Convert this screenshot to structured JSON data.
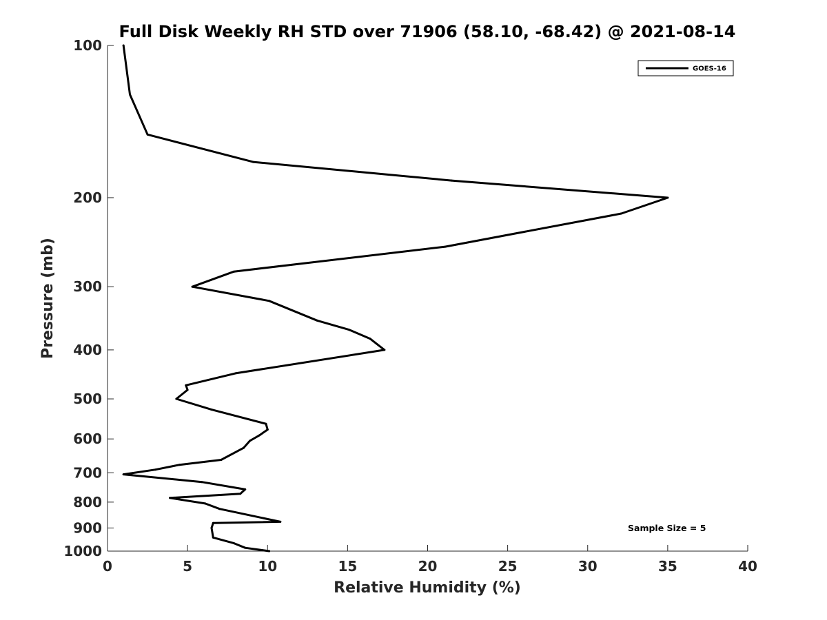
{
  "chart_data": {
    "type": "line",
    "title": "Full Disk Weekly RH STD over 71906 (58.10, -68.42) @ 2021-08-14",
    "xlabel": "Relative Humidity (%)",
    "ylabel": "Pressure (mb)",
    "xlim": [
      0,
      40
    ],
    "ylim": [
      100,
      1000
    ],
    "y_scale": "log",
    "y_direction": "reversed",
    "xticks": [
      0,
      5,
      10,
      15,
      20,
      25,
      30,
      35,
      40
    ],
    "yticks": [
      100,
      200,
      300,
      400,
      500,
      600,
      700,
      800,
      900,
      1000
    ],
    "grid": false,
    "legend_position": "top-right",
    "annotation": "Sample Size = 5",
    "series": [
      {
        "name": "GOES-16",
        "color": "#000000",
        "points": [
          [
            1.0,
            100
          ],
          [
            1.4,
            125
          ],
          [
            2.5,
            150
          ],
          [
            9.1,
            170
          ],
          [
            21.5,
            185
          ],
          [
            35.0,
            200
          ],
          [
            32.1,
            215
          ],
          [
            21.1,
            250
          ],
          [
            7.9,
            280
          ],
          [
            5.3,
            300
          ],
          [
            10.1,
            320
          ],
          [
            13.1,
            350
          ],
          [
            15.1,
            365
          ],
          [
            16.4,
            380
          ],
          [
            17.3,
            400
          ],
          [
            8.0,
            445
          ],
          [
            4.9,
            470
          ],
          [
            5.0,
            480
          ],
          [
            4.3,
            500
          ],
          [
            6.5,
            525
          ],
          [
            9.9,
            560
          ],
          [
            10.0,
            575
          ],
          [
            9.5,
            590
          ],
          [
            8.9,
            605
          ],
          [
            8.5,
            625
          ],
          [
            7.1,
            660
          ],
          [
            4.5,
            675
          ],
          [
            3.0,
            690
          ],
          [
            1.0,
            705
          ],
          [
            5.9,
            730
          ],
          [
            8.6,
            755
          ],
          [
            8.3,
            770
          ],
          [
            3.9,
            785
          ],
          [
            6.1,
            805
          ],
          [
            7.0,
            825
          ],
          [
            10.8,
            875
          ],
          [
            6.6,
            880
          ],
          [
            6.5,
            900
          ],
          [
            6.6,
            940
          ],
          [
            7.9,
            965
          ],
          [
            8.6,
            985
          ],
          [
            10.1,
            1000
          ]
        ]
      }
    ]
  }
}
